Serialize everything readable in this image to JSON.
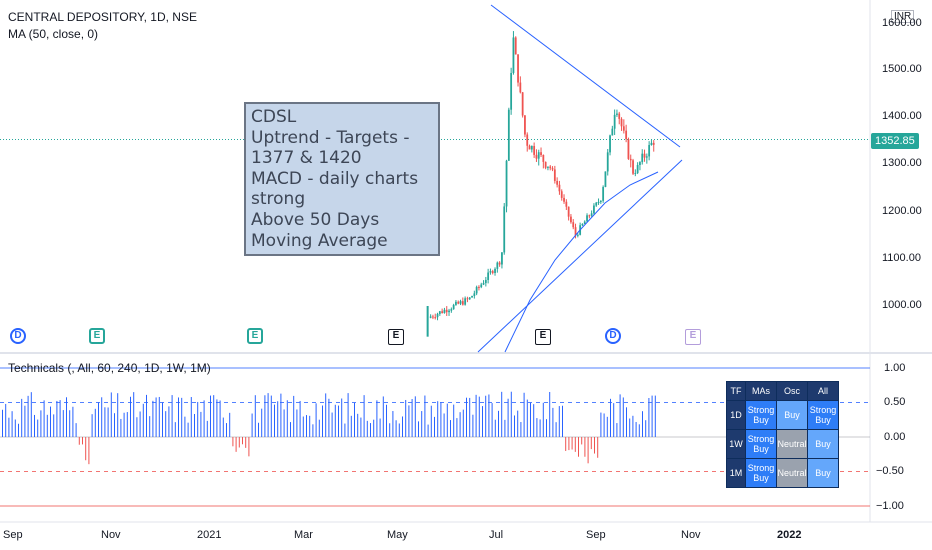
{
  "header": {
    "title": "CENTRAL DEPOSITORY, 1D, NSE",
    "ma_label": "MA (50, close, 0)",
    "indicator_label": "Technicals (, All, 60, 240, 1D, 1W, 1M)"
  },
  "currency": "INR",
  "price_tag": "1352.85",
  "colors": {
    "up": "#26a69a",
    "down": "#ef5350",
    "ma": "#2962ff",
    "trend": "#2962ff",
    "tech_bar": "#2962ff",
    "tech_neg": "#ef5350"
  },
  "note": {
    "lines": [
      "CDSL",
      "Uptrend - Targets -",
      "1377 & 1420",
      "MACD - daily charts",
      "strong",
      "Above 50 Days",
      "Moving Average"
    ]
  },
  "events": [
    {
      "type": "dividend",
      "glyph": "D"
    },
    {
      "type": "earnings",
      "glyph": "E"
    },
    {
      "type": "earnings",
      "glyph": "E"
    },
    {
      "type": "expiry",
      "glyph": "E"
    },
    {
      "type": "expiry",
      "glyph": "E"
    },
    {
      "type": "dividend",
      "glyph": "D"
    },
    {
      "type": "expiry-future",
      "glyph": "E"
    }
  ],
  "tech_table": {
    "headers": [
      "TF",
      "MAs",
      "Osc",
      "All"
    ],
    "rows": [
      {
        "tf": "1D",
        "mas": "Strong Buy",
        "osc": "Buy",
        "all": "Strong Buy"
      },
      {
        "tf": "1W",
        "mas": "Strong Buy",
        "osc": "Neutral",
        "all": "Buy"
      },
      {
        "tf": "1M",
        "mas": "Strong Buy",
        "osc": "Neutral",
        "all": "Buy"
      }
    ]
  },
  "chart_data": [
    {
      "type": "candlestick",
      "title": "CENTRAL DEPOSITORY, 1D, NSE",
      "ylabel": "",
      "unit": "INR",
      "y_ticks": [
        "1000.00",
        "1100.00",
        "1200.00",
        "1300.00",
        "1400.00",
        "1500.00",
        "1600.00"
      ],
      "ylim": [
        935,
        1640
      ],
      "x_ticks": [
        "Sep",
        "Nov",
        "2021",
        "Mar",
        "May",
        "Jul",
        "Sep",
        "Nov",
        "2022"
      ],
      "last_price": 1352.85,
      "key_points": [
        {
          "date": "2021-05-20",
          "close": 975
        },
        {
          "date": "2021-06-15",
          "close": 1015
        },
        {
          "date": "2021-07-05",
          "close": 1100
        },
        {
          "date": "2021-07-12",
          "close": 1575
        },
        {
          "date": "2021-07-20",
          "close": 1350
        },
        {
          "date": "2021-08-05",
          "close": 1290
        },
        {
          "date": "2021-08-20",
          "close": 1150
        },
        {
          "date": "2021-09-05",
          "close": 1230
        },
        {
          "date": "2021-09-14",
          "close": 1430
        },
        {
          "date": "2021-09-25",
          "close": 1280
        },
        {
          "date": "2021-10-08",
          "close": 1352.85
        }
      ],
      "ma": {
        "name": "MA (50, close, 0)",
        "start": 935,
        "end": 1300
      }
    },
    {
      "type": "bar",
      "title": "Technicals (, All, 60, 240, 1D, 1W, 1M)",
      "y_ticks": [
        "1.00",
        "0.50",
        "0.00",
        "−0.50",
        "−1.00"
      ],
      "ylim": [
        -1.1,
        1.1
      ],
      "x_ticks": [
        "Sep",
        "Nov",
        "2021",
        "Mar",
        "May",
        "Jul",
        "Sep",
        "Nov",
        "2022"
      ],
      "levels": [
        1.0,
        0.5,
        0.0,
        -0.5,
        -1.0
      ],
      "last_value": 0.6
    }
  ]
}
